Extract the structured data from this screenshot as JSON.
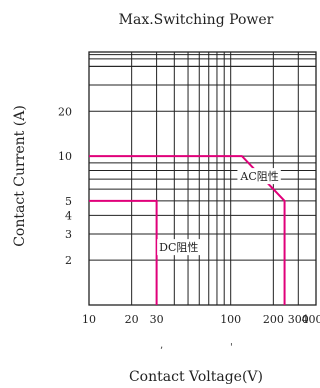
{
  "chart_data": {
    "type": "line",
    "title": "Max.Switching Power",
    "xlabel": "Contact Voltage(V)",
    "ylabel": "Contact Current (A)",
    "x_scale": "log",
    "y_scale": "log",
    "xlim": [
      10,
      400
    ],
    "ylim": [
      1,
      50
    ],
    "x_ticks": [
      10,
      20,
      30,
      100,
      200,
      300,
      400
    ],
    "x_tick_labels": [
      "10",
      "20",
      "30",
      "100",
      "200",
      "300",
      "400"
    ],
    "y_ticks": [
      2,
      3,
      4,
      5,
      10,
      20
    ],
    "y_tick_labels": [
      "2",
      "3",
      "4",
      "5",
      "10",
      "20"
    ],
    "grid": true,
    "series": [
      {
        "name": "AC阻性",
        "color": "#e0007a",
        "x": [
          10,
          120,
          240,
          240
        ],
        "y": [
          10,
          10,
          5,
          1
        ]
      },
      {
        "name": "DC阻性",
        "color": "#e0007a",
        "x": [
          10,
          30,
          30
        ],
        "y": [
          5,
          5,
          1
        ]
      }
    ],
    "annotations": [
      {
        "text": "AC阻性",
        "x": 160,
        "y": 6.9
      },
      {
        "text": "DC阻性",
        "x": 43,
        "y": 2.3
      }
    ],
    "stray_marks": [
      ",",
      "'"
    ]
  }
}
